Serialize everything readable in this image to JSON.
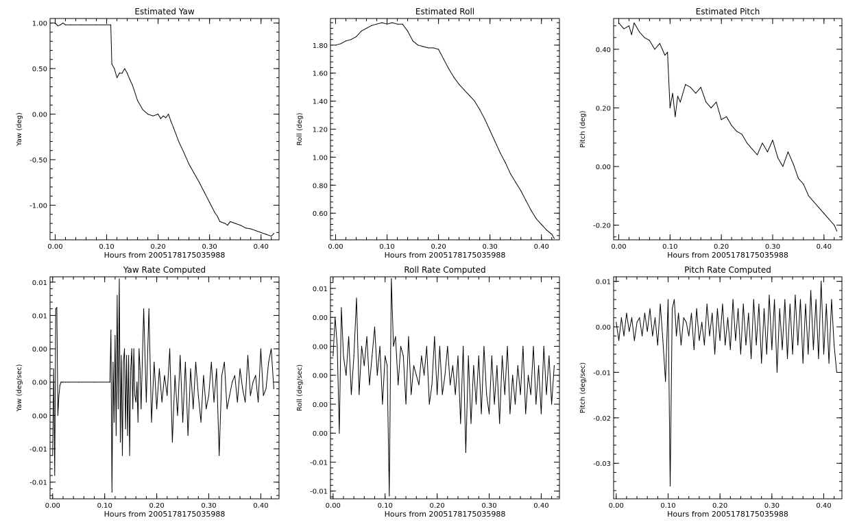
{
  "chart_data": [
    {
      "type": "line",
      "title": "Estimated Yaw",
      "xlabel": "Hours from 2005178175035988",
      "ylabel": "Yaw (deg)",
      "xlim": [
        -0.01,
        0.435
      ],
      "ylim": [
        -1.38,
        1.05
      ],
      "xticks": [
        "0.00",
        "0.10",
        "0.20",
        "0.30",
        "0.40"
      ],
      "xtick_values": [
        0,
        0.1,
        0.2,
        0.3,
        0.4
      ],
      "yticks": [
        "1.00",
        "0.50",
        "0.00",
        "-0.50",
        "-1.00"
      ],
      "ytick_values": [
        1,
        0.5,
        0,
        -0.5,
        -1
      ],
      "x": [
        0,
        0.005,
        0.01,
        0.015,
        0.02,
        0.03,
        0.05,
        0.08,
        0.108,
        0.11,
        0.115,
        0.12,
        0.125,
        0.13,
        0.135,
        0.14,
        0.145,
        0.15,
        0.16,
        0.17,
        0.18,
        0.19,
        0.2,
        0.205,
        0.21,
        0.215,
        0.22,
        0.225,
        0.23,
        0.24,
        0.25,
        0.26,
        0.27,
        0.28,
        0.29,
        0.3,
        0.31,
        0.315,
        0.32,
        0.33,
        0.335,
        0.34,
        0.35,
        0.36,
        0.37,
        0.38,
        0.39,
        0.4,
        0.41,
        0.42,
        0.425
      ],
      "series": [
        {
          "values": [
            1.0,
            0.97,
            0.98,
            1.0,
            0.98,
            0.98,
            0.98,
            0.98,
            0.98,
            0.55,
            0.5,
            0.4,
            0.45,
            0.45,
            0.5,
            0.45,
            0.38,
            0.32,
            0.15,
            0.05,
            0.0,
            -0.02,
            0.0,
            -0.05,
            -0.02,
            -0.04,
            0.0,
            -0.08,
            -0.15,
            -0.3,
            -0.42,
            -0.55,
            -0.65,
            -0.75,
            -0.86,
            -0.97,
            -1.08,
            -1.12,
            -1.18,
            -1.2,
            -1.22,
            -1.18,
            -1.2,
            -1.22,
            -1.25,
            -1.26,
            -1.28,
            -1.3,
            -1.32,
            -1.34,
            -1.31
          ]
        }
      ]
    },
    {
      "type": "line",
      "title": "Estimated Roll",
      "xlabel": "Hours from 2005178175035988",
      "ylabel": "Roll (deg)",
      "xlim": [
        -0.01,
        0.435
      ],
      "ylim": [
        0.41,
        1.99
      ],
      "xticks": [
        "0.00",
        "0.10",
        "0.20",
        "0.30",
        "0.40"
      ],
      "xtick_values": [
        0,
        0.1,
        0.2,
        0.3,
        0.4
      ],
      "yticks": [
        "1.80",
        "1.60",
        "1.40",
        "1.20",
        "1.00",
        "0.80",
        "0.60"
      ],
      "ytick_values": [
        1.8,
        1.6,
        1.4,
        1.2,
        1.0,
        0.8,
        0.6
      ],
      "x": [
        0,
        0.01,
        0.02,
        0.03,
        0.04,
        0.05,
        0.06,
        0.07,
        0.08,
        0.09,
        0.1,
        0.11,
        0.12,
        0.13,
        0.14,
        0.15,
        0.16,
        0.17,
        0.18,
        0.19,
        0.2,
        0.21,
        0.22,
        0.23,
        0.24,
        0.25,
        0.26,
        0.27,
        0.28,
        0.29,
        0.3,
        0.31,
        0.32,
        0.33,
        0.34,
        0.35,
        0.36,
        0.37,
        0.38,
        0.39,
        0.4,
        0.41,
        0.42,
        0.425
      ],
      "series": [
        {
          "values": [
            1.8,
            1.81,
            1.83,
            1.84,
            1.86,
            1.9,
            1.92,
            1.94,
            1.95,
            1.96,
            1.95,
            1.96,
            1.95,
            1.95,
            1.9,
            1.83,
            1.8,
            1.79,
            1.78,
            1.78,
            1.77,
            1.7,
            1.63,
            1.57,
            1.52,
            1.48,
            1.44,
            1.4,
            1.34,
            1.27,
            1.19,
            1.11,
            1.03,
            0.96,
            0.88,
            0.82,
            0.76,
            0.69,
            0.62,
            0.56,
            0.52,
            0.48,
            0.45,
            0.42
          ]
        }
      ]
    },
    {
      "type": "line",
      "title": "Estimated Pitch",
      "xlabel": "Hours from 2005178175035988",
      "ylabel": "Pitch (deg)",
      "xlim": [
        -0.01,
        0.435
      ],
      "ylim": [
        -0.25,
        0.505
      ],
      "xticks": [
        "0.00",
        "0.10",
        "0.20",
        "0.30",
        "0.40"
      ],
      "xtick_values": [
        0,
        0.1,
        0.2,
        0.3,
        0.4
      ],
      "yticks": [
        "0.40",
        "0.20",
        "0.00",
        "-0.20"
      ],
      "ytick_values": [
        0.4,
        0.2,
        0.0,
        -0.2
      ],
      "x": [
        0,
        0.01,
        0.02,
        0.025,
        0.03,
        0.04,
        0.05,
        0.06,
        0.07,
        0.08,
        0.09,
        0.095,
        0.1,
        0.105,
        0.11,
        0.115,
        0.12,
        0.13,
        0.14,
        0.15,
        0.16,
        0.17,
        0.18,
        0.19,
        0.2,
        0.21,
        0.22,
        0.23,
        0.24,
        0.25,
        0.26,
        0.27,
        0.28,
        0.29,
        0.3,
        0.31,
        0.32,
        0.33,
        0.34,
        0.35,
        0.36,
        0.37,
        0.38,
        0.39,
        0.4,
        0.41,
        0.42,
        0.425
      ],
      "series": [
        {
          "values": [
            0.49,
            0.47,
            0.48,
            0.45,
            0.49,
            0.46,
            0.44,
            0.43,
            0.4,
            0.42,
            0.38,
            0.39,
            0.2,
            0.25,
            0.17,
            0.24,
            0.22,
            0.28,
            0.27,
            0.25,
            0.27,
            0.22,
            0.2,
            0.22,
            0.16,
            0.17,
            0.14,
            0.12,
            0.11,
            0.08,
            0.06,
            0.04,
            0.08,
            0.05,
            0.09,
            0.03,
            0.0,
            0.05,
            0.01,
            -0.04,
            -0.06,
            -0.1,
            -0.12,
            -0.14,
            -0.16,
            -0.18,
            -0.2,
            -0.22
          ]
        }
      ]
    },
    {
      "type": "line",
      "title": "Yaw Rate Computed",
      "xlabel": "Hours from 2005178175035988",
      "ylabel": "Yaw (deg/sec)",
      "xlim": [
        -0.005,
        0.435
      ],
      "ylim": [
        -0.0175,
        0.0158
      ],
      "xticks": [
        "0.00",
        "0.10",
        "0.20",
        "0.30",
        "0.40"
      ],
      "xtick_values": [
        0,
        0.1,
        0.2,
        0.3,
        0.4
      ],
      "yticks": [
        "0.01",
        "0.01",
        "0.00",
        "0.00",
        "0.00",
        "-0.01",
        "-0.01"
      ],
      "ytick_values": [
        0.015,
        0.01,
        0.005,
        0.0,
        -0.005,
        -0.01,
        -0.015
      ],
      "x": [
        0,
        0.002,
        0.004,
        0.006,
        0.008,
        0.01,
        0.012,
        0.014,
        0.016,
        0.018,
        0.02,
        0.025,
        0.03,
        0.05,
        0.08,
        0.11,
        0.112,
        0.114,
        0.116,
        0.118,
        0.12,
        0.122,
        0.124,
        0.126,
        0.128,
        0.13,
        0.132,
        0.134,
        0.136,
        0.138,
        0.14,
        0.142,
        0.144,
        0.146,
        0.148,
        0.15,
        0.152,
        0.154,
        0.156,
        0.158,
        0.16,
        0.162,
        0.164,
        0.166,
        0.168,
        0.17,
        0.175,
        0.18,
        0.185,
        0.19,
        0.195,
        0.2,
        0.205,
        0.21,
        0.215,
        0.22,
        0.225,
        0.23,
        0.235,
        0.24,
        0.245,
        0.25,
        0.255,
        0.26,
        0.265,
        0.27,
        0.275,
        0.28,
        0.285,
        0.29,
        0.295,
        0.3,
        0.305,
        0.31,
        0.315,
        0.32,
        0.325,
        0.33,
        0.335,
        0.34,
        0.345,
        0.35,
        0.355,
        0.36,
        0.365,
        0.37,
        0.375,
        0.38,
        0.385,
        0.39,
        0.395,
        0.4,
        0.405,
        0.41,
        0.415,
        0.42,
        0.425
      ],
      "series": [
        {
          "values": [
            -0.011,
            0.002,
            -0.014,
            0.011,
            0.0112,
            -0.005,
            -0.002,
            -0.0005,
            0.0,
            0.0,
            0.0,
            0.0,
            0.0,
            0.0,
            0.0,
            0.0,
            0.0078,
            -0.0165,
            0.003,
            -0.006,
            0.007,
            -0.008,
            0.013,
            -0.004,
            0.0155,
            -0.009,
            0.004,
            -0.011,
            0.003,
            0.005,
            -0.007,
            0.004,
            -0.008,
            0.004,
            -0.011,
            0.002,
            0.005,
            -0.004,
            0.005,
            -0.002,
            -0.003,
            0.0,
            -0.006,
            0.005,
            0.002,
            -0.004,
            0.011,
            -0.003,
            0.011,
            -0.006,
            0.003,
            -0.004,
            0.002,
            -0.003,
            0.001,
            -0.002,
            0.005,
            -0.009,
            0.001,
            -0.005,
            0.004,
            -0.006,
            0.003,
            -0.008,
            0.002,
            -0.004,
            0.003,
            -0.002,
            -0.006,
            0.001,
            -0.004,
            -0.002,
            0.003,
            -0.003,
            0.002,
            -0.011,
            0.001,
            0.003,
            -0.004,
            -0.002,
            0.0,
            0.001,
            -0.003,
            0.002,
            -0.001,
            -0.003,
            0.004,
            -0.002,
            0.0,
            0.001,
            -0.003,
            0.005,
            -0.002,
            -0.001,
            0.003,
            0.005,
            -0.001
          ]
        }
      ]
    },
    {
      "type": "line",
      "title": "Roll Rate Computed",
      "xlabel": "Hours from 2005178175035988",
      "ylabel": "Roll (deg/sec)",
      "xlim": [
        -0.005,
        0.435
      ],
      "ylim": [
        -0.0128,
        0.0102
      ],
      "xticks": [
        "0.00",
        "0.10",
        "0.20",
        "0.30",
        "0.40"
      ],
      "xtick_values": [
        0,
        0.1,
        0.2,
        0.3,
        0.4
      ],
      "yticks": [
        "0.01",
        "0.00",
        "0.00",
        "0.00",
        "0.00",
        "0.00",
        "-0.01",
        "-0.01"
      ],
      "ytick_values": [
        0.009,
        0.006,
        0.003,
        0.0,
        -0.003,
        -0.006,
        -0.009,
        -0.012
      ],
      "x": [
        0,
        0.004,
        0.008,
        0.012,
        0.016,
        0.02,
        0.025,
        0.03,
        0.035,
        0.04,
        0.045,
        0.05,
        0.055,
        0.06,
        0.065,
        0.07,
        0.075,
        0.08,
        0.085,
        0.09,
        0.095,
        0.1,
        0.104,
        0.108,
        0.112,
        0.116,
        0.12,
        0.125,
        0.13,
        0.135,
        0.14,
        0.145,
        0.15,
        0.155,
        0.16,
        0.165,
        0.17,
        0.175,
        0.18,
        0.185,
        0.19,
        0.195,
        0.2,
        0.205,
        0.21,
        0.215,
        0.22,
        0.225,
        0.23,
        0.235,
        0.24,
        0.245,
        0.25,
        0.255,
        0.26,
        0.265,
        0.27,
        0.275,
        0.28,
        0.285,
        0.29,
        0.295,
        0.3,
        0.305,
        0.31,
        0.315,
        0.32,
        0.325,
        0.33,
        0.335,
        0.34,
        0.345,
        0.35,
        0.355,
        0.36,
        0.365,
        0.37,
        0.375,
        0.38,
        0.385,
        0.39,
        0.395,
        0.4,
        0.405,
        0.41,
        0.415,
        0.42,
        0.425
      ],
      "series": [
        {
          "values": [
            0.002,
            0.006,
            0.003,
            -0.006,
            0.007,
            0.002,
            0.0,
            0.004,
            -0.002,
            0.002,
            0.008,
            -0.002,
            0.003,
            0.001,
            0.004,
            -0.001,
            0.002,
            0.005,
            0.0,
            0.003,
            -0.003,
            0.002,
            0.001,
            -0.0125,
            0.01,
            0.003,
            0.004,
            -0.001,
            0.003,
            0.002,
            -0.003,
            0.004,
            -0.002,
            0.001,
            0.0,
            -0.001,
            0.002,
            0.0,
            0.003,
            -0.003,
            -0.001,
            0.004,
            -0.002,
            0.003,
            -0.002,
            0.0,
            0.003,
            -0.001,
            0.001,
            -0.002,
            0.002,
            -0.005,
            0.003,
            -0.008,
            0.002,
            -0.005,
            0.001,
            -0.003,
            0.002,
            -0.004,
            0.003,
            -0.002,
            -0.004,
            0.002,
            -0.003,
            0.001,
            -0.005,
            0.002,
            -0.002,
            0.003,
            -0.004,
            0.0,
            -0.003,
            0.001,
            -0.002,
            0.003,
            -0.004,
            0.0,
            -0.002,
            0.003,
            -0.003,
            0.001,
            -0.004,
            0.003,
            -0.002,
            0.002,
            -0.003,
            0.001
          ]
        }
      ]
    },
    {
      "type": "line",
      "title": "Pitch Rate Computed",
      "xlabel": "Hours from 2005178175035988",
      "ylabel": "Pitch (deg/sec)",
      "xlim": [
        -0.005,
        0.435
      ],
      "ylim": [
        -0.0378,
        0.011
      ],
      "xticks": [
        "0.00",
        "0.10",
        "0.20",
        "0.30",
        "0.40"
      ],
      "xtick_values": [
        0,
        0.1,
        0.2,
        0.3,
        0.4
      ],
      "yticks": [
        "0.01",
        "0.00",
        "-0.01",
        "-0.02",
        "-0.03"
      ],
      "ytick_values": [
        0.01,
        0.0,
        -0.01,
        -0.02,
        -0.03
      ],
      "x": [
        0,
        0.005,
        0.01,
        0.015,
        0.02,
        0.025,
        0.03,
        0.035,
        0.04,
        0.045,
        0.05,
        0.055,
        0.06,
        0.065,
        0.07,
        0.075,
        0.08,
        0.085,
        0.09,
        0.095,
        0.1,
        0.104,
        0.108,
        0.112,
        0.116,
        0.12,
        0.125,
        0.13,
        0.135,
        0.14,
        0.145,
        0.15,
        0.155,
        0.16,
        0.165,
        0.17,
        0.175,
        0.18,
        0.185,
        0.19,
        0.195,
        0.2,
        0.205,
        0.21,
        0.215,
        0.22,
        0.225,
        0.23,
        0.235,
        0.24,
        0.245,
        0.25,
        0.255,
        0.26,
        0.265,
        0.27,
        0.275,
        0.28,
        0.285,
        0.29,
        0.295,
        0.3,
        0.305,
        0.31,
        0.315,
        0.32,
        0.325,
        0.33,
        0.335,
        0.34,
        0.345,
        0.35,
        0.355,
        0.36,
        0.365,
        0.37,
        0.375,
        0.38,
        0.385,
        0.39,
        0.395,
        0.4,
        0.405,
        0.41,
        0.415,
        0.42,
        0.425
      ],
      "series": [
        {
          "values": [
            0.001,
            -0.003,
            0.002,
            -0.002,
            0.003,
            -0.001,
            0.002,
            -0.003,
            0.001,
            0.002,
            -0.002,
            0.003,
            -0.001,
            0.004,
            -0.002,
            0.002,
            -0.004,
            0.005,
            -0.003,
            -0.012,
            0.006,
            -0.035,
            0.004,
            0.006,
            -0.002,
            0.003,
            -0.004,
            0.002,
            0.001,
            -0.002,
            0.003,
            -0.005,
            0.004,
            -0.003,
            0.001,
            -0.004,
            0.005,
            -0.002,
            0.003,
            -0.006,
            0.004,
            -0.003,
            0.005,
            -0.004,
            0.002,
            -0.005,
            0.006,
            -0.003,
            0.004,
            -0.006,
            0.005,
            -0.004,
            0.003,
            -0.007,
            0.006,
            -0.004,
            0.005,
            -0.008,
            0.004,
            -0.006,
            0.007,
            -0.005,
            0.006,
            -0.01,
            0.004,
            -0.005,
            0.006,
            -0.007,
            0.005,
            -0.006,
            0.007,
            -0.004,
            0.006,
            -0.008,
            0.005,
            -0.006,
            0.008,
            -0.005,
            0.006,
            -0.007,
            0.01,
            -0.006,
            0.005,
            -0.008,
            0.006,
            -0.004,
            -0.01
          ]
        }
      ]
    }
  ]
}
